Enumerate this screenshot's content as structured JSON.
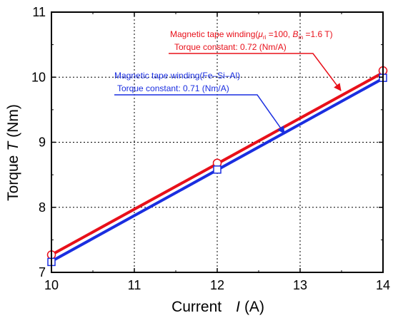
{
  "chart_data": {
    "type": "line",
    "xlabel": "Current",
    "xlabel_symbol": "I",
    "xlabel_unit": "(A)",
    "ylabel": "Torque",
    "ylabel_symbol": "T",
    "ylabel_unit": "(Nm)",
    "xlim": [
      10,
      14
    ],
    "ylim": [
      7,
      11
    ],
    "xticks": [
      10,
      11,
      12,
      13,
      14
    ],
    "yticks": [
      7,
      8,
      9,
      10,
      11
    ],
    "grid": true,
    "series": [
      {
        "key": "red",
        "color": "#e8101a",
        "marker": "circle",
        "x": [
          10,
          12,
          14
        ],
        "y": [
          7.27,
          8.68,
          10.1
        ],
        "fit_y": [
          7.27,
          10.07
        ]
      },
      {
        "key": "blue",
        "color": "#1a2ee0",
        "marker": "square",
        "x": [
          10,
          12,
          14
        ],
        "y": [
          7.16,
          8.58,
          9.99
        ],
        "fit_y": [
          7.17,
          9.98
        ]
      }
    ],
    "annotations": {
      "red": {
        "line1_prefix": "Magnetic tape winding(",
        "mu": "μ",
        "mu_sub": "ri",
        "mu_value": " =100, ",
        "b": "B",
        "b_sub": "m",
        "b_value": " =1.6 T)",
        "line2": "Torque constant: 0.72 (Nm/A)",
        "color": "#e8101a"
      },
      "blue": {
        "line1": "Magnetic tape winding(Fe–Si–Al)",
        "line2": "Torque constant: 0.71 (Nm/A)",
        "color": "#1a2ee0"
      }
    }
  }
}
